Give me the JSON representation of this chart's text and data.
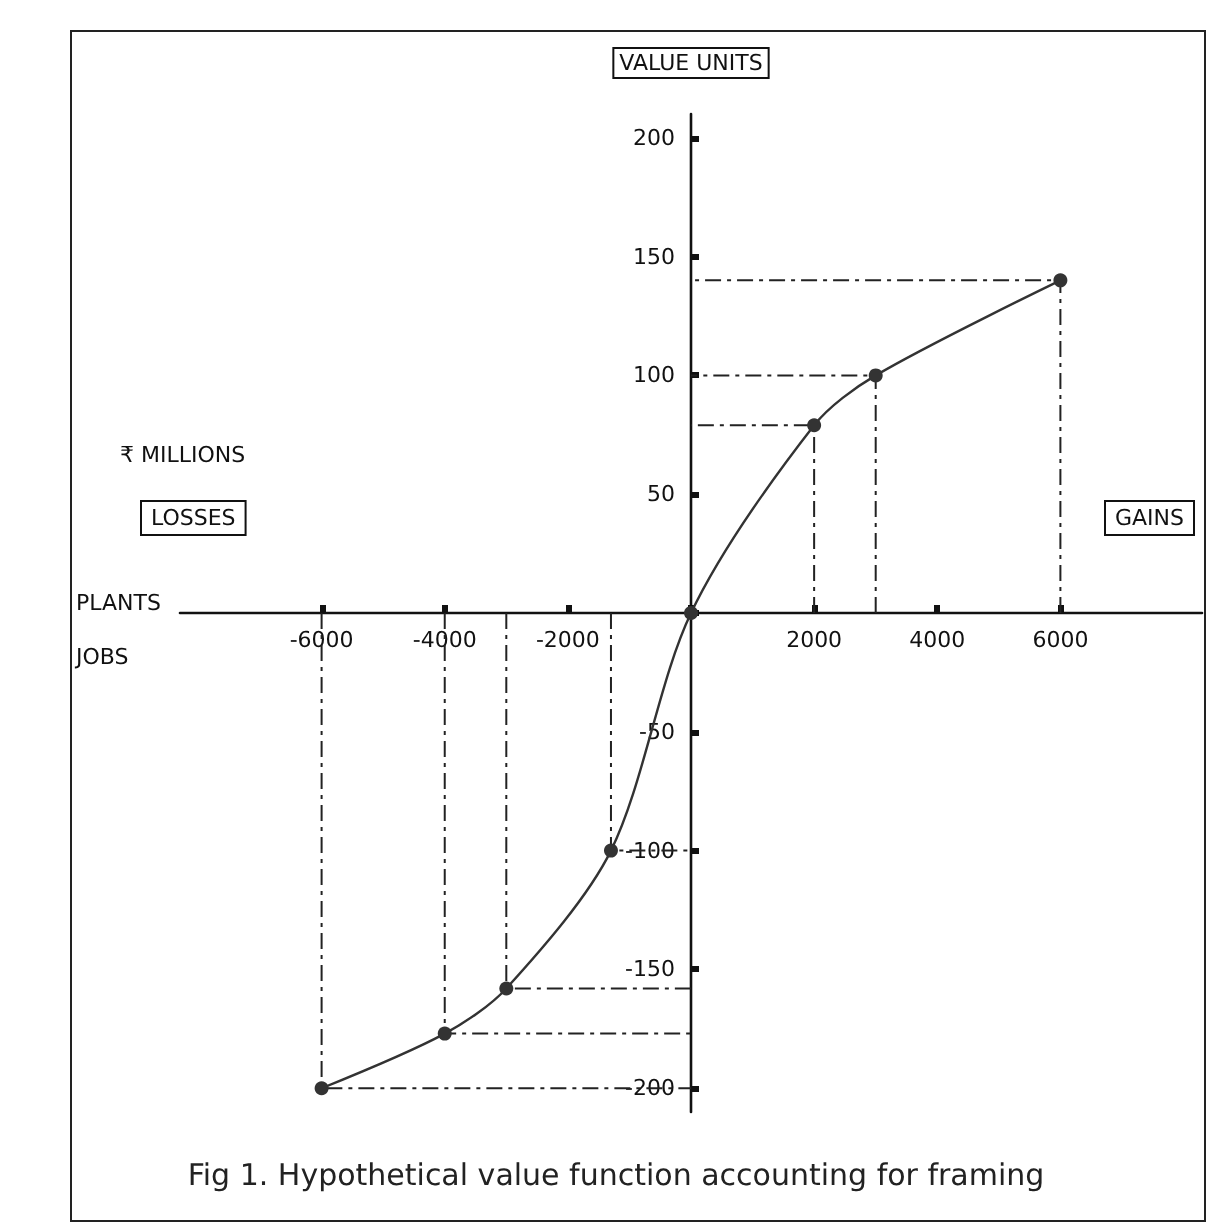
{
  "chart_data": {
    "type": "line",
    "title": "Fig 1. Hypothetical value function accounting for framing",
    "ylabel": "VALUE UNITS",
    "annotations": [
      "₹ MILLIONS",
      "LOSSES",
      "GAINS",
      "PLANTS",
      "JOBS"
    ],
    "x": [
      -6000,
      -4000,
      -3000,
      -1300,
      0,
      2000,
      3000,
      6000
    ],
    "series": [
      {
        "color": "#333333",
        "values": [
          -200,
          -177,
          -158,
          -100,
          0,
          79,
          100,
          140
        ]
      },
      {
        "color": "#222222",
        "x": [
          -6000,
          -6000,
          0
        ],
        "values": [
          0,
          -200,
          -200
        ],
        "marker": "none",
        "line_style": "dashed"
      },
      {
        "color": "#222222",
        "x": [
          -4000,
          -4000,
          0
        ],
        "values": [
          0,
          -177,
          -177
        ],
        "marker": "none",
        "line_style": "dashed"
      },
      {
        "color": "#222222",
        "x": [
          -3000,
          -3000,
          0
        ],
        "values": [
          0,
          -158,
          -158
        ],
        "marker": "none",
        "line_style": "dashed"
      },
      {
        "color": "#222222",
        "x": [
          -1300,
          -1300,
          0
        ],
        "values": [
          0,
          -100,
          -100
        ],
        "marker": "none",
        "line_style": "dashed"
      },
      {
        "color": "#222222",
        "x": [
          2000,
          2000,
          0
        ],
        "values": [
          0,
          79,
          79
        ],
        "marker": "none",
        "line_style": "dashed"
      },
      {
        "color": "#222222",
        "x": [
          3000,
          3000,
          0
        ],
        "values": [
          0,
          100,
          100
        ],
        "marker": "none",
        "line_style": "dashed"
      },
      {
        "color": "#222222",
        "x": [
          6000,
          6000,
          0
        ],
        "values": [
          0,
          140,
          140
        ],
        "marker": "none",
        "line_style": "dashed"
      }
    ],
    "xlim": [
      -8300,
      8300
    ],
    "xticks": [
      -6000,
      -4000,
      -2000,
      {
        "value": 0,
        "label": null
      },
      2000,
      4000,
      6000
    ],
    "ylim": [
      -210,
      210
    ],
    "yticks": [
      -200,
      -150,
      -100,
      -50,
      {
        "value": 0,
        "label": null
      },
      50,
      100,
      150,
      200
    ],
    "marker": "circle",
    "line_style": "solid"
  }
}
